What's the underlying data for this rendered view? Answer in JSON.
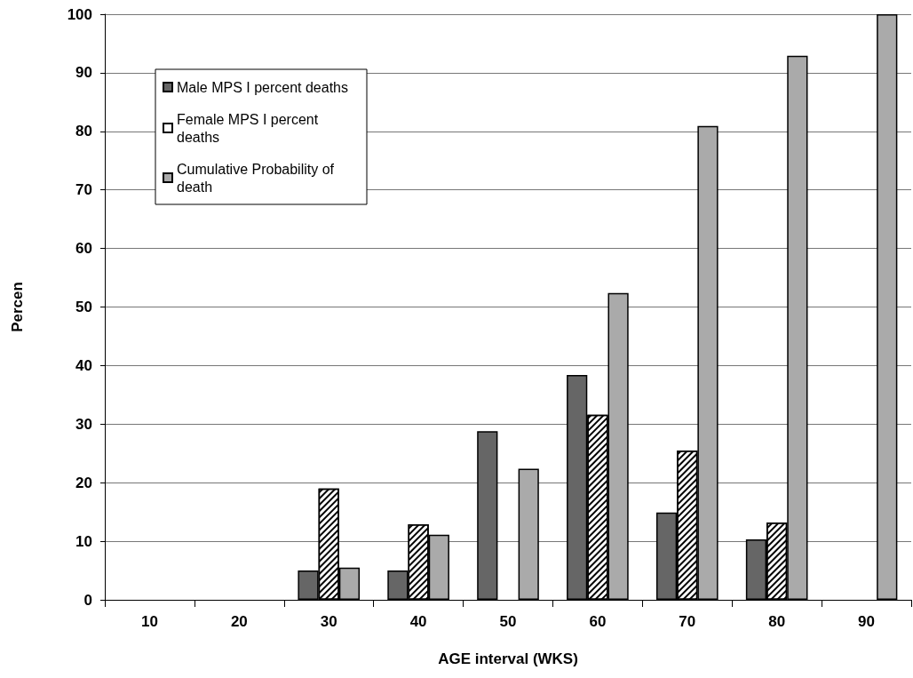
{
  "chart_data": {
    "type": "bar",
    "xlabel": "AGE interval (WKS)",
    "ylabel": "Percen",
    "categories": [
      "10",
      "20",
      "30",
      "40",
      "50",
      "60",
      "70",
      "80",
      "90"
    ],
    "series": [
      {
        "name": "Male MPS I percent deaths",
        "color": "#666666",
        "values": [
          null,
          null,
          5.0,
          5.0,
          28.8,
          38.4,
          14.9,
          10.3,
          null
        ]
      },
      {
        "name": "Female MPS I percent deaths",
        "color": "#ffffff",
        "values": [
          null,
          null,
          19.0,
          12.9,
          null,
          31.6,
          25.5,
          13.2,
          null
        ]
      },
      {
        "name": "Cumulative Probability of death",
        "color": "#aaaaaa",
        "values": [
          null,
          null,
          5.5,
          11.1,
          22.4,
          52.4,
          80.9,
          92.9,
          100
        ]
      }
    ],
    "ylim": [
      0,
      100
    ],
    "yticks": [
      0,
      10,
      20,
      30,
      40,
      50,
      60,
      70,
      80,
      90,
      100
    ],
    "grid": "y",
    "legend": "top left"
  }
}
